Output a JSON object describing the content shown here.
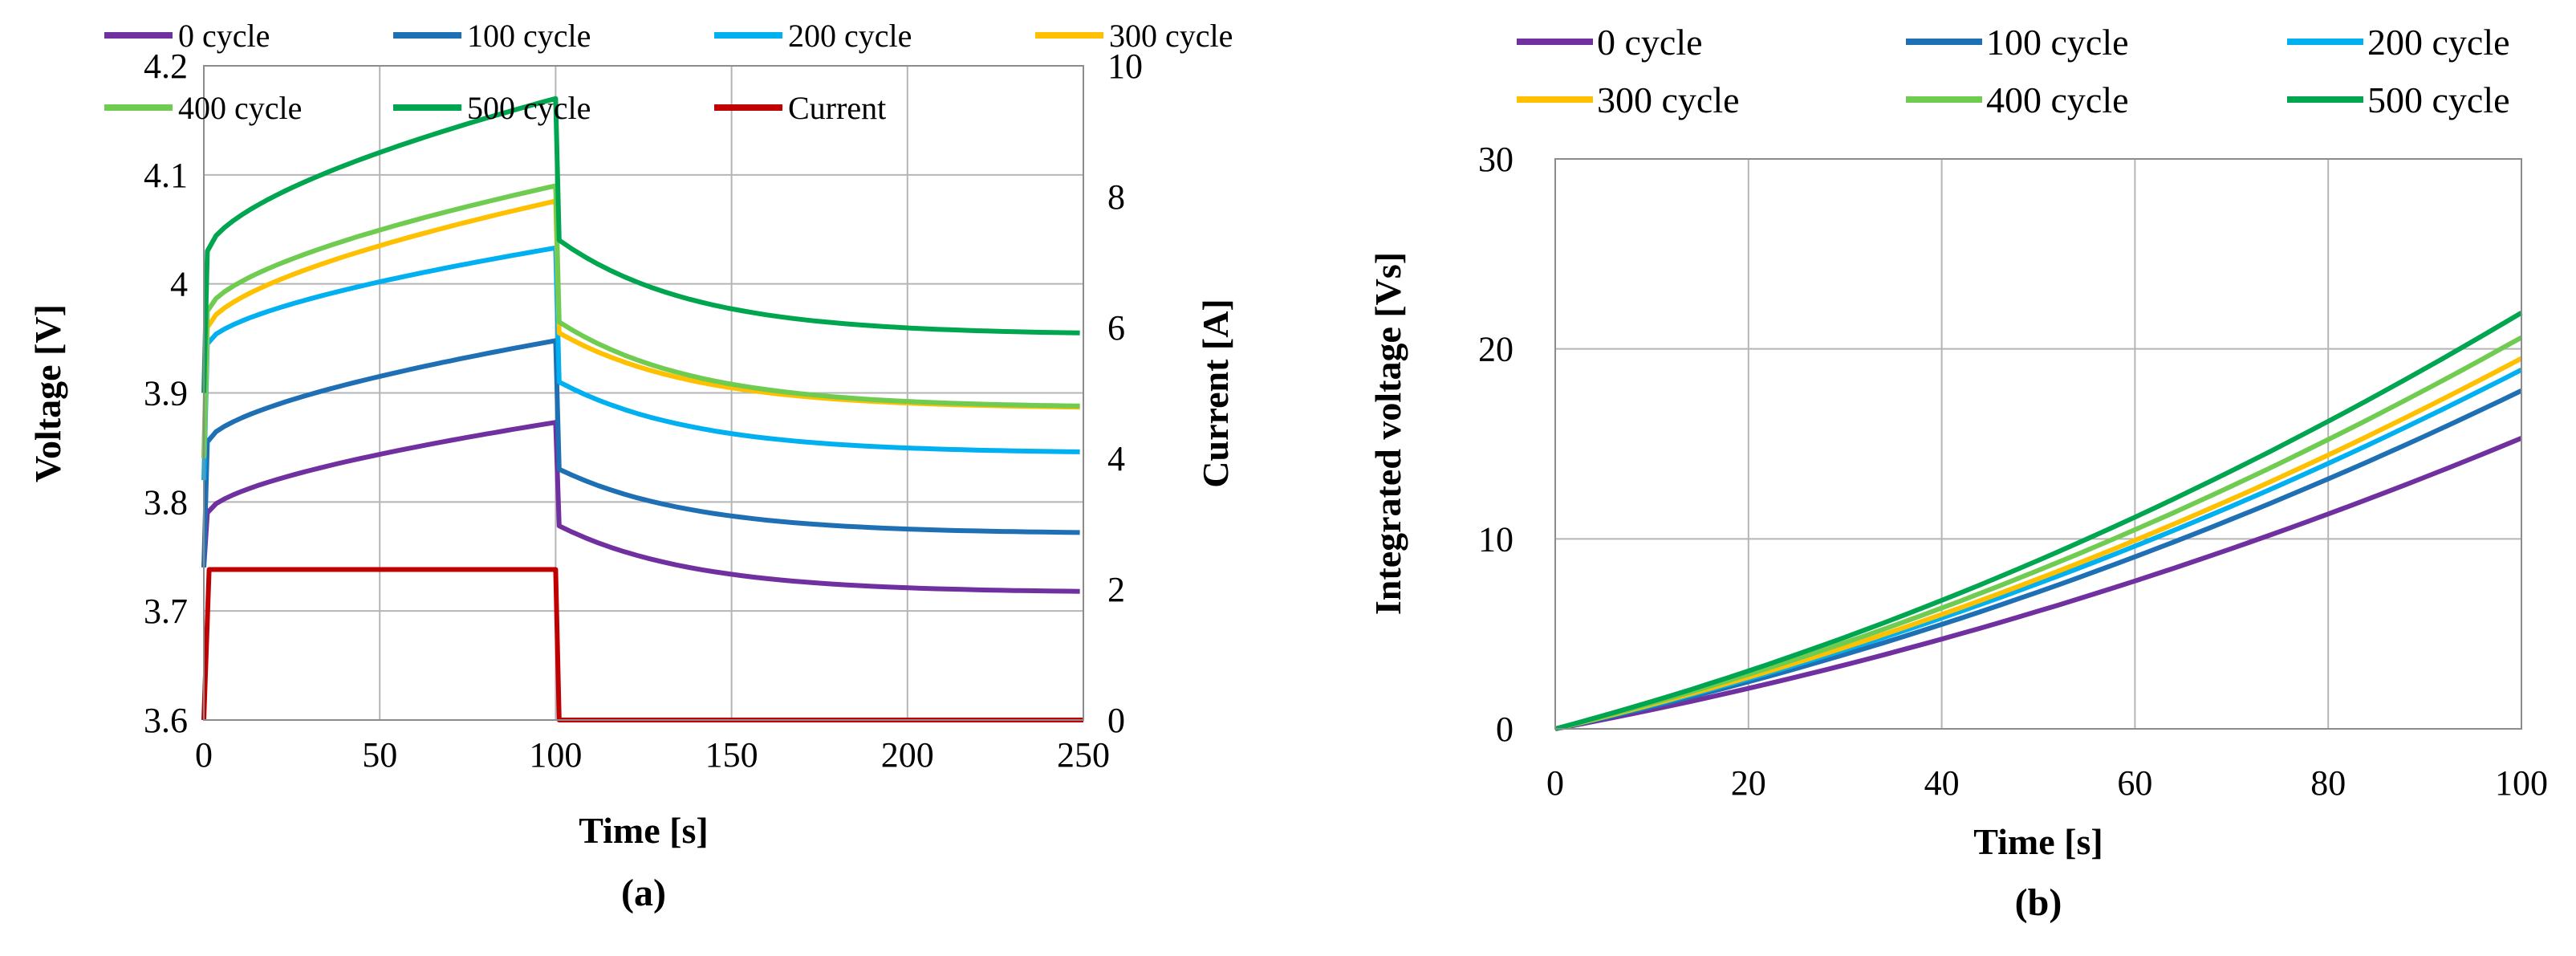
{
  "figure": {
    "panel_a_label": "(a)",
    "panel_b_label": "(b)"
  },
  "chart_data": [
    {
      "type": "line",
      "panel": "(a)",
      "title": "",
      "xlabel": "Time [s]",
      "ylabel": "Voltage [V]",
      "y2label": "Current [A]",
      "xlim": [
        0,
        250
      ],
      "ylim": [
        3.6,
        4.2
      ],
      "y2lim": [
        0,
        10
      ],
      "x_ticks": [
        "0",
        "50",
        "100",
        "150",
        "200",
        "250"
      ],
      "y_ticks": [
        "3.6",
        "3.7",
        "3.8",
        "3.9",
        "4",
        "4.1",
        "4.2"
      ],
      "y2_ticks": [
        "0",
        "2",
        "4",
        "6",
        "8",
        "10"
      ],
      "grid": true,
      "legend": "top",
      "series": [
        {
          "name": "0 cycle",
          "color": "#7030a0",
          "start": 3.74,
          "jump": 3.79,
          "end_charge": 3.873,
          "relax_start": 3.778,
          "relax_end": 3.718
        },
        {
          "name": "100 cycle",
          "color": "#1f6fb4",
          "start": 3.74,
          "jump": 3.855,
          "end_charge": 3.948,
          "relax_start": 3.83,
          "relax_end": 3.772
        },
        {
          "name": "200 cycle",
          "color": "#00b0f0",
          "start": 3.82,
          "jump": 3.945,
          "end_charge": 4.033,
          "relax_start": 3.91,
          "relax_end": 3.846
        },
        {
          "name": "300 cycle",
          "color": "#ffc000",
          "start": 3.84,
          "jump": 3.96,
          "end_charge": 4.076,
          "relax_start": 3.955,
          "relax_end": 3.887
        },
        {
          "name": "400 cycle",
          "color": "#70cc50",
          "start": 3.84,
          "jump": 3.975,
          "end_charge": 4.09,
          "relax_start": 3.965,
          "relax_end": 3.888
        },
        {
          "name": "500 cycle",
          "color": "#00a550",
          "start": 3.9,
          "jump": 4.03,
          "end_charge": 4.17,
          "relax_start": 4.04,
          "relax_end": 3.955
        },
        {
          "name": "Current",
          "color": "#c00000",
          "axis": "right",
          "points": [
            [
              0,
              0
            ],
            [
              1.5,
              2.3
            ],
            [
              100,
              2.3
            ],
            [
              101,
              0
            ],
            [
              250,
              0
            ]
          ]
        }
      ]
    },
    {
      "type": "line",
      "panel": "(b)",
      "title": "",
      "xlabel": "Time [s]",
      "ylabel": "Integrated voltage [Vs]",
      "xlim": [
        0,
        100
      ],
      "ylim": [
        0,
        30
      ],
      "x_ticks": [
        "0",
        "20",
        "40",
        "60",
        "80",
        "100"
      ],
      "y_ticks": [
        "0",
        "10",
        "20",
        "30"
      ],
      "grid": true,
      "legend": "top",
      "series": [
        {
          "name": "0 cycle",
          "color": "#7030a0",
          "end_value": 15.3
        },
        {
          "name": "100 cycle",
          "color": "#1f6fb4",
          "end_value": 17.8
        },
        {
          "name": "200 cycle",
          "color": "#00b0f0",
          "end_value": 18.9
        },
        {
          "name": "300 cycle",
          "color": "#ffc000",
          "end_value": 19.5
        },
        {
          "name": "400 cycle",
          "color": "#70cc50",
          "end_value": 20.6
        },
        {
          "name": "500 cycle",
          "color": "#00a550",
          "end_value": 21.9
        }
      ]
    }
  ]
}
